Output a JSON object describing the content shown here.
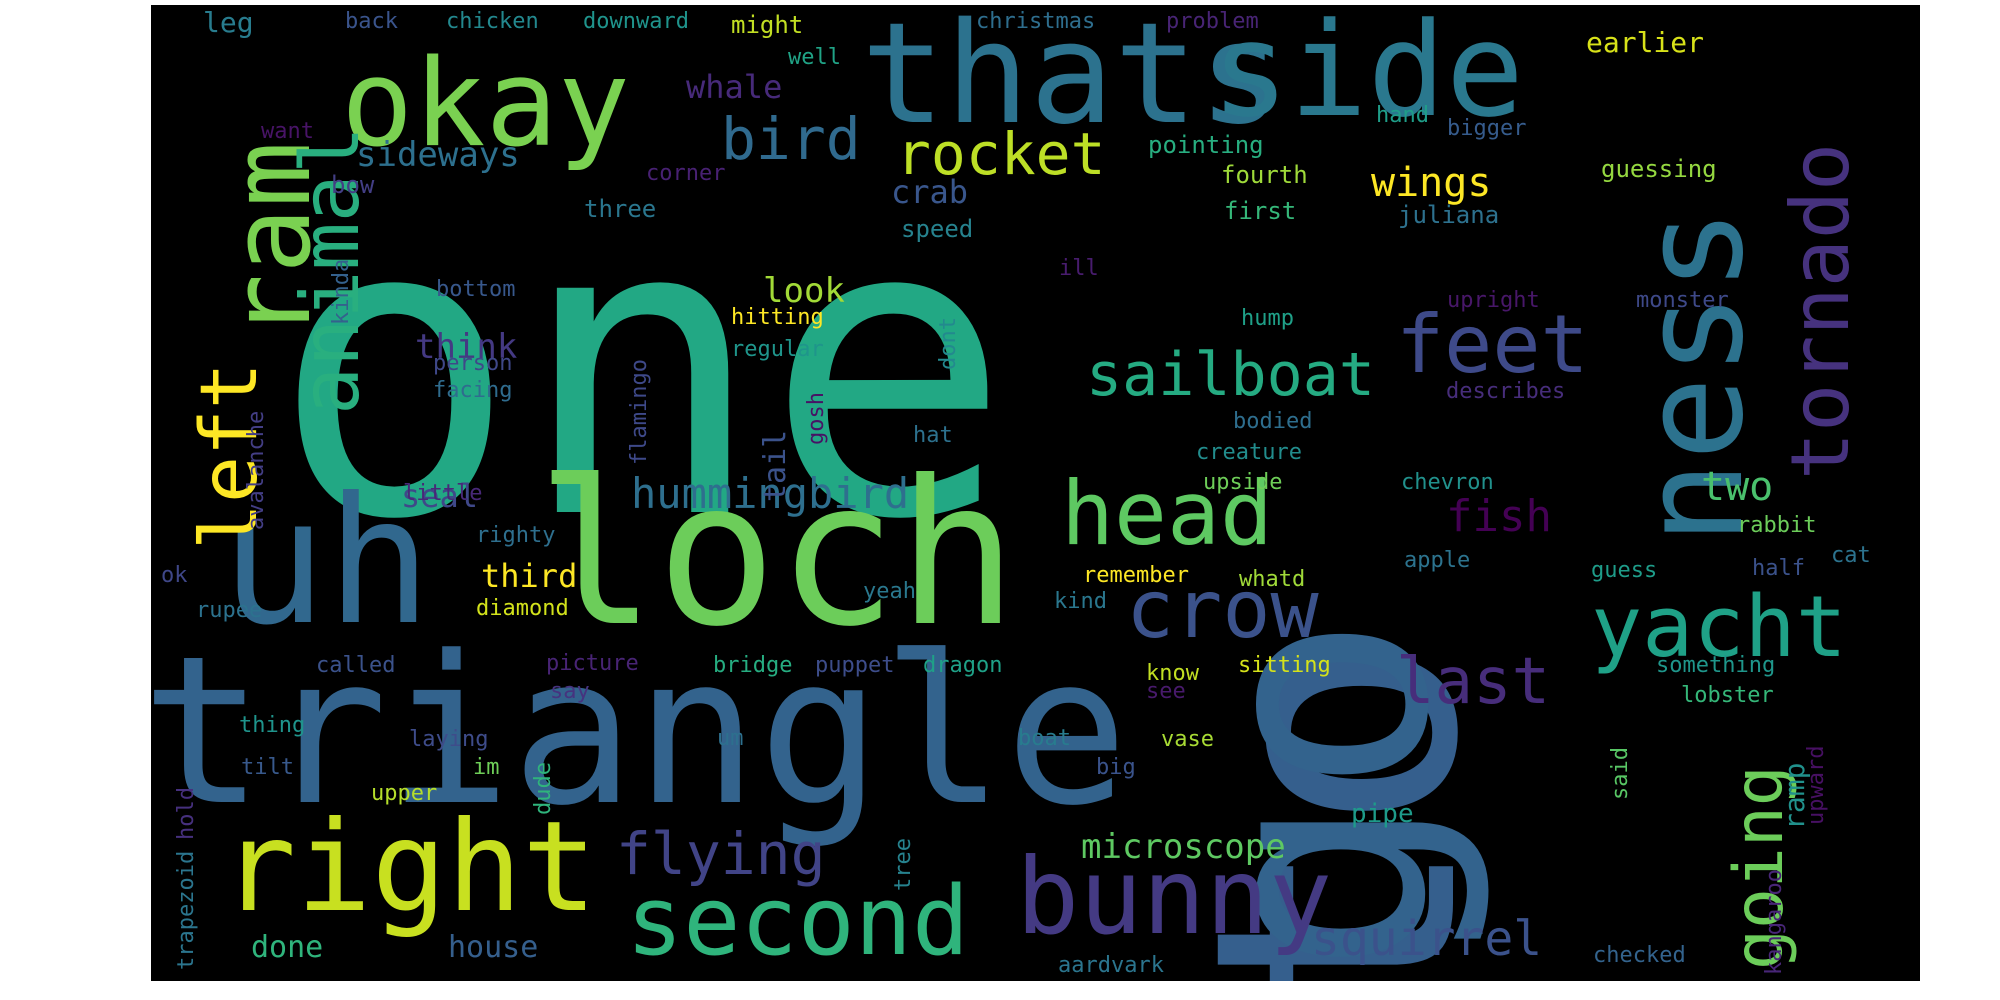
{
  "words": [
    {
      "text": "one",
      "color": "#22a884"
    },
    {
      "text": "to",
      "color": "#355f8d"
    },
    {
      "text": "triangle",
      "color": "#33638d"
    },
    {
      "text": "go",
      "color": "#33638d"
    },
    {
      "text": "loch",
      "color": "#6ccd5a"
    },
    {
      "text": "uh",
      "color": "#31688e"
    },
    {
      "text": "thats",
      "color": "#2c728e"
    },
    {
      "text": "side",
      "color": "#2a788e"
    },
    {
      "text": "okay",
      "color": "#7ad151"
    },
    {
      "text": "ness",
      "color": "#2c728e"
    },
    {
      "text": "right",
      "color": "#c8e020"
    },
    {
      "text": "left",
      "color": "#fde725"
    },
    {
      "text": "ram",
      "color": "#7ad151"
    },
    {
      "text": "bunny",
      "color": "#443a83"
    },
    {
      "text": "second",
      "color": "#2fb47c"
    },
    {
      "text": "head",
      "color": "#5ec962"
    },
    {
      "text": "crow",
      "color": "#3b528b"
    },
    {
      "text": "yacht",
      "color": "#1fa187"
    },
    {
      "text": "tornado",
      "color": "#46327e"
    },
    {
      "text": "animal",
      "color": "#29af7f"
    },
    {
      "text": "feet",
      "color": "#3e4a89"
    },
    {
      "text": "sailboat",
      "color": "#25ab82"
    },
    {
      "text": "rocket",
      "color": "#bddf26"
    },
    {
      "text": "bird",
      "color": "#306a8e"
    },
    {
      "text": "going",
      "color": "#6ccd5a"
    },
    {
      "text": "last",
      "color": "#472d7b"
    },
    {
      "text": "flying",
      "color": "#414487"
    },
    {
      "text": "squirrel",
      "color": "#3b528b"
    },
    {
      "text": "hummingbird",
      "color": "#2e6f8e"
    },
    {
      "text": "microscope",
      "color": "#5ec962"
    },
    {
      "text": "wings",
      "color": "#fde725"
    },
    {
      "text": "fish",
      "color": "#440154"
    },
    {
      "text": "two",
      "color": "#4ac16d"
    },
    {
      "text": "sideways",
      "color": "#2d708e"
    },
    {
      "text": "whale",
      "color": "#472a7a"
    },
    {
      "text": "crab",
      "color": "#39568c"
    },
    {
      "text": "look",
      "color": "#a2da37"
    },
    {
      "text": "think",
      "color": "#443983"
    },
    {
      "text": "seal",
      "color": "#3f4889"
    },
    {
      "text": "third",
      "color": "#fde725"
    },
    {
      "text": "tail",
      "color": "#3b528b"
    },
    {
      "text": "ramp",
      "color": "#21918c"
    },
    {
      "text": "house",
      "color": "#355f8d"
    },
    {
      "text": "done",
      "color": "#2fb47c"
    },
    {
      "text": "earlier",
      "color": "#d8e219"
    },
    {
      "text": "leg",
      "color": "#287c8e"
    },
    {
      "text": "back",
      "color": "#3a548c"
    },
    {
      "text": "chicken",
      "color": "#23888e"
    },
    {
      "text": "downward",
      "color": "#1f948c"
    },
    {
      "text": "might",
      "color": "#c2df23"
    },
    {
      "text": "christmas",
      "color": "#2e6e8e"
    },
    {
      "text": "problem",
      "color": "#482475"
    },
    {
      "text": "well",
      "color": "#20a386"
    },
    {
      "text": "want",
      "color": "#481467"
    },
    {
      "text": "pointing",
      "color": "#28ae80"
    },
    {
      "text": "hand",
      "color": "#1f9e89"
    },
    {
      "text": "bigger",
      "color": "#365c8d"
    },
    {
      "text": "corner",
      "color": "#482173"
    },
    {
      "text": "fourth",
      "color": "#9fda3a"
    },
    {
      "text": "guessing",
      "color": "#95d840"
    },
    {
      "text": "bow",
      "color": "#433e85"
    },
    {
      "text": "three",
      "color": "#2a768e"
    },
    {
      "text": "speed",
      "color": "#26828e"
    },
    {
      "text": "first",
      "color": "#35b779"
    },
    {
      "text": "juliana",
      "color": "#2d718e"
    },
    {
      "text": "kinda",
      "color": "#34618d"
    },
    {
      "text": "bottom",
      "color": "#38588c"
    },
    {
      "text": "ill",
      "color": "#481c6e"
    },
    {
      "text": "upright",
      "color": "#481769"
    },
    {
      "text": "monster",
      "color": "#3e4989"
    },
    {
      "text": "hitting",
      "color": "#fde725"
    },
    {
      "text": "regular",
      "color": "#1f958b"
    },
    {
      "text": "dont",
      "color": "#23898e"
    },
    {
      "text": "hump",
      "color": "#1fa088"
    },
    {
      "text": "flamingo",
      "color": "#3e4989"
    },
    {
      "text": "person",
      "color": "#3f4889"
    },
    {
      "text": "facing",
      "color": "#2f6c8e"
    },
    {
      "text": "avalanche",
      "color": "#433e85"
    },
    {
      "text": "hat",
      "color": "#2d718e"
    },
    {
      "text": "describes",
      "color": "#472d7b"
    },
    {
      "text": "bodied",
      "color": "#2e6e8e"
    },
    {
      "text": "gosh",
      "color": "#471365"
    },
    {
      "text": "creature",
      "color": "#228d8d"
    },
    {
      "text": "upside",
      "color": "#6ece58"
    },
    {
      "text": "little",
      "color": "#482878"
    },
    {
      "text": "chevron",
      "color": "#21918c"
    },
    {
      "text": "righty",
      "color": "#2e6f8e"
    },
    {
      "text": "rabbit",
      "color": "#6ccd5a"
    },
    {
      "text": "remember",
      "color": "#fde725"
    },
    {
      "text": "whatd",
      "color": "#a0da39"
    },
    {
      "text": "apple",
      "color": "#2c738e"
    },
    {
      "text": "cat",
      "color": "#2c738e"
    },
    {
      "text": "half",
      "color": "#3b528b"
    },
    {
      "text": "ok",
      "color": "#3f4788"
    },
    {
      "text": "guess",
      "color": "#1e9c89"
    },
    {
      "text": "yeah",
      "color": "#2a788e"
    },
    {
      "text": "kind",
      "color": "#2a778e"
    },
    {
      "text": "rupee",
      "color": "#2c728e"
    },
    {
      "text": "diamond",
      "color": "#d2e21b"
    },
    {
      "text": "called",
      "color": "#3b528b"
    },
    {
      "text": "picture",
      "color": "#482475"
    },
    {
      "text": "bridge",
      "color": "#26ad81"
    },
    {
      "text": "puppet",
      "color": "#3d4d8a"
    },
    {
      "text": "dragon",
      "color": "#1fa187"
    },
    {
      "text": "know",
      "color": "#c2df23"
    },
    {
      "text": "sitting",
      "color": "#d5e21a"
    },
    {
      "text": "something",
      "color": "#1f968b"
    },
    {
      "text": "say",
      "color": "#46337f"
    },
    {
      "text": "see",
      "color": "#481a6c"
    },
    {
      "text": "thing",
      "color": "#1f948c"
    },
    {
      "text": "lobster",
      "color": "#35b779"
    },
    {
      "text": "laying",
      "color": "#3e4c8a"
    },
    {
      "text": "um",
      "color": "#2d708e"
    },
    {
      "text": "boat",
      "color": "#287c8e"
    },
    {
      "text": "vase",
      "color": "#a8db34"
    },
    {
      "text": "upward",
      "color": "#471063"
    },
    {
      "text": "tilt",
      "color": "#38598c"
    },
    {
      "text": "im",
      "color": "#6ece58"
    },
    {
      "text": "big",
      "color": "#3a538b"
    },
    {
      "text": "trapezoid",
      "color": "#2b758e"
    },
    {
      "text": "hold",
      "color": "#46307e"
    },
    {
      "text": "upper",
      "color": "#b5de2b"
    },
    {
      "text": "dude",
      "color": "#2fb47c"
    },
    {
      "text": "kangaroo",
      "color": "#482677"
    },
    {
      "text": "said",
      "color": "#58c765"
    },
    {
      "text": "pipe",
      "color": "#1e9b8a"
    },
    {
      "text": "tree",
      "color": "#26828e"
    },
    {
      "text": "aardvark",
      "color": "#2b758e"
    },
    {
      "text": "checked",
      "color": "#33638d"
    }
  ]
}
